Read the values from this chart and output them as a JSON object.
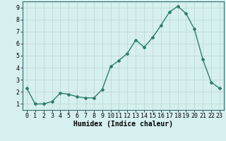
{
  "x": [
    0,
    1,
    2,
    3,
    4,
    5,
    6,
    7,
    8,
    9,
    10,
    11,
    12,
    13,
    14,
    15,
    16,
    17,
    18,
    19,
    20,
    21,
    22,
    23
  ],
  "y": [
    2.3,
    1.0,
    1.0,
    1.2,
    1.9,
    1.8,
    1.6,
    1.5,
    1.5,
    2.2,
    4.1,
    4.6,
    5.2,
    6.3,
    5.7,
    6.5,
    7.5,
    8.6,
    9.1,
    8.5,
    7.2,
    4.7,
    2.8,
    2.3
  ],
  "line_color": "#2e7d6e",
  "marker": "D",
  "marker_size": 2.0,
  "linewidth": 1.0,
  "bg_color": "#d6f0ef",
  "grid_color": "#c0d8d8",
  "xlabel": "Humidex (Indice chaleur)",
  "xlim": [
    -0.5,
    23.5
  ],
  "ylim": [
    0.5,
    9.5
  ],
  "yticks": [
    1,
    2,
    3,
    4,
    5,
    6,
    7,
    8,
    9
  ],
  "xticks": [
    0,
    1,
    2,
    3,
    4,
    5,
    6,
    7,
    8,
    9,
    10,
    11,
    12,
    13,
    14,
    15,
    16,
    17,
    18,
    19,
    20,
    21,
    22,
    23
  ],
  "xlabel_fontsize": 7.0,
  "tick_fontsize": 6.0,
  "spine_color": "#2e6e6e"
}
